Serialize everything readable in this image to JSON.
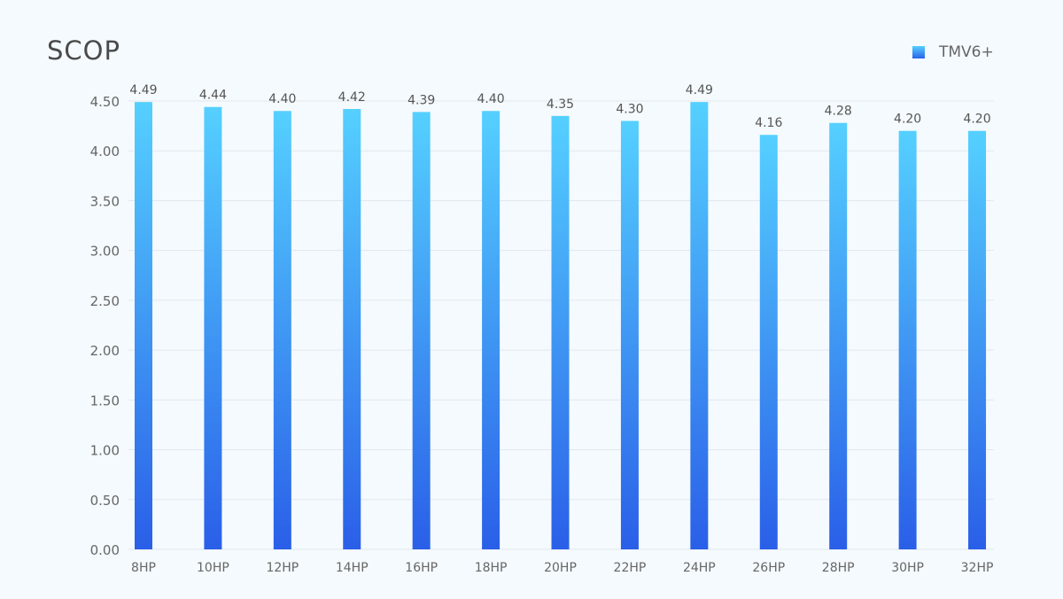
{
  "chart_data": {
    "type": "bar",
    "title": "SCOP",
    "categories": [
      "8HP",
      "10HP",
      "12HP",
      "14HP",
      "16HP",
      "18HP",
      "20HP",
      "22HP",
      "24HP",
      "26HP",
      "28HP",
      "30HP",
      "32HP"
    ],
    "series": [
      {
        "name": "TMV6+",
        "values": [
          4.49,
          4.44,
          4.4,
          4.42,
          4.39,
          4.4,
          4.35,
          4.3,
          4.49,
          4.16,
          4.28,
          4.2,
          4.2
        ]
      }
    ],
    "ylim": [
      0,
      4.5
    ],
    "yticks": [
      "0.00",
      "0.50",
      "1.00",
      "1.50",
      "2.00",
      "2.50",
      "3.00",
      "3.50",
      "4.00",
      "4.50"
    ],
    "grid": true,
    "legend": "top-right",
    "colors": {
      "bar_top": "#55d0ff",
      "bar_bottom": "#2a5fe8"
    }
  }
}
